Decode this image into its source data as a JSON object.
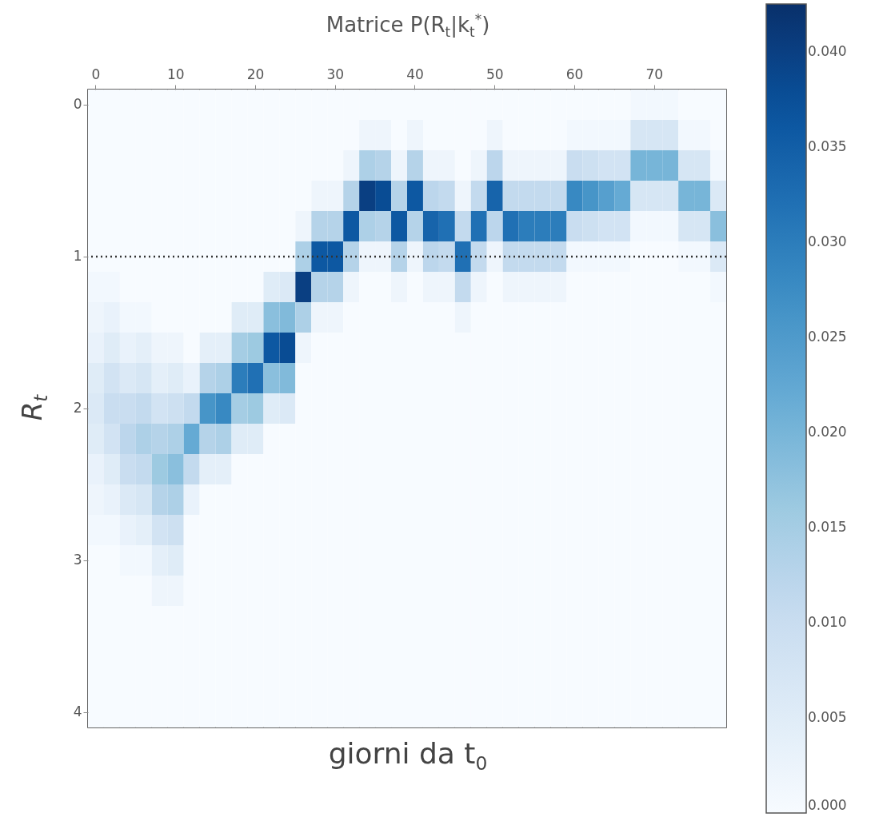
{
  "chart_data": {
    "type": "heatmap",
    "title": "Matrice P(R$_{t}$|k$_{t}$$^{*}$)",
    "xlabel": "giorni da t$_{0}$",
    "ylabel": "R$_{t}$",
    "categories": [
      "0",
      null,
      null,
      null,
      null,
      "10",
      null,
      null,
      null,
      null,
      "20",
      null,
      null,
      null,
      null,
      "30",
      null,
      null,
      null,
      null,
      "40",
      null,
      null,
      null,
      null,
      "50",
      null,
      null,
      null,
      null,
      "60",
      null,
      null,
      null,
      null,
      "70",
      null,
      null,
      null,
      null
    ],
    "y_categories": [
      "0",
      null,
      null,
      null,
      null,
      "1",
      null,
      null,
      null,
      null,
      "2",
      null,
      null,
      null,
      null,
      "3",
      null,
      null,
      null,
      null,
      "4"
    ],
    "clim": [
      0,
      0.0425
    ],
    "cticks": [
      {
        "value": 0,
        "label": "0.000"
      },
      {
        "value": 0.005,
        "label": "0.005"
      },
      {
        "value": 0.01,
        "label": "0.010"
      },
      {
        "value": 0.015,
        "label": "0.015"
      },
      {
        "value": 0.02,
        "label": "0.020"
      },
      {
        "value": 0.025,
        "label": "0.025"
      },
      {
        "value": 0.03,
        "label": "0.030"
      },
      {
        "value": 0.035,
        "label": "0.035"
      },
      {
        "value": 0.04,
        "label": "0.040"
      }
    ],
    "ref_lines": [
      {
        "axis": "y",
        "value": "1",
        "line_style": "dotted",
        "color": "#333333"
      }
    ],
    "cells": [
      [
        0,
        0,
        0,
        0,
        0,
        0,
        0,
        0,
        0,
        0,
        0,
        0,
        0,
        0,
        0,
        0,
        0,
        0,
        0,
        0,
        0,
        0,
        0,
        0,
        0,
        0,
        0,
        0,
        0,
        0,
        0,
        0,
        0,
        0,
        0.001,
        0.001,
        0.001,
        0,
        0,
        0
      ],
      [
        0,
        0,
        0,
        0,
        0,
        0,
        0,
        0,
        0,
        0,
        0,
        0,
        0,
        0,
        0,
        0,
        0,
        0.002,
        0.002,
        0,
        0.002,
        0,
        0,
        0,
        0,
        0.002,
        0,
        0,
        0,
        0,
        0.001,
        0.001,
        0.001,
        0.001,
        0.007,
        0.007,
        0.007,
        0.001,
        0.001,
        0
      ],
      [
        0,
        0,
        0,
        0,
        0,
        0,
        0,
        0,
        0,
        0,
        0,
        0,
        0,
        0,
        0,
        0,
        0.002,
        0.014,
        0.013,
        0.002,
        0.013,
        0.002,
        0.002,
        0,
        0.002,
        0.012,
        0.002,
        0.002,
        0.002,
        0.002,
        0.01,
        0.009,
        0.008,
        0.008,
        0.02,
        0.02,
        0.02,
        0.007,
        0.007,
        0.001
      ],
      [
        0,
        0,
        0,
        0,
        0,
        0,
        0,
        0,
        0,
        0,
        0,
        0,
        0,
        0,
        0.002,
        0.002,
        0.013,
        0.04,
        0.038,
        0.013,
        0.036,
        0.012,
        0.011,
        0.002,
        0.011,
        0.034,
        0.011,
        0.011,
        0.011,
        0.011,
        0.028,
        0.026,
        0.024,
        0.022,
        0.007,
        0.007,
        0.007,
        0.02,
        0.02,
        0.006
      ],
      [
        0,
        0,
        0,
        0,
        0,
        0,
        0,
        0,
        0,
        0,
        0,
        0,
        0,
        0.002,
        0.013,
        0.013,
        0.036,
        0.014,
        0.013,
        0.036,
        0.013,
        0.034,
        0.032,
        0.011,
        0.032,
        0.012,
        0.032,
        0.03,
        0.03,
        0.03,
        0.01,
        0.009,
        0.008,
        0.008,
        0.001,
        0.001,
        0.001,
        0.007,
        0.007,
        0.018
      ],
      [
        0,
        0,
        0,
        0,
        0,
        0,
        0,
        0,
        0,
        0,
        0,
        0,
        0,
        0.014,
        0.036,
        0.036,
        0.013,
        0.002,
        0.002,
        0.013,
        0.002,
        0.012,
        0.011,
        0.032,
        0.011,
        0.002,
        0.011,
        0.011,
        0.011,
        0.011,
        0.001,
        0.001,
        0.001,
        0.001,
        0,
        0,
        0,
        0.001,
        0.001,
        0.006
      ],
      [
        0.001,
        0.001,
        0,
        0,
        0,
        0,
        0,
        0,
        0,
        0,
        0,
        0.005,
        0.006,
        0.04,
        0.013,
        0.013,
        0.002,
        0,
        0,
        0.002,
        0,
        0.002,
        0.002,
        0.011,
        0.002,
        0,
        0.002,
        0.002,
        0.002,
        0.002,
        0,
        0,
        0,
        0,
        0,
        0,
        0,
        0,
        0,
        0.001
      ],
      [
        0.002,
        0.003,
        0.001,
        0.001,
        0,
        0,
        0,
        0,
        0,
        0.005,
        0.005,
        0.018,
        0.019,
        0.014,
        0.002,
        0.002,
        0,
        0,
        0,
        0,
        0,
        0,
        0,
        0.002,
        0,
        0,
        0,
        0,
        0,
        0,
        0,
        0,
        0,
        0,
        0,
        0,
        0,
        0,
        0,
        0
      ],
      [
        0.003,
        0.005,
        0.003,
        0.004,
        0.002,
        0.002,
        0,
        0.004,
        0.004,
        0.015,
        0.016,
        0.036,
        0.038,
        0.002,
        0,
        0,
        0,
        0,
        0,
        0,
        0,
        0,
        0,
        0,
        0,
        0,
        0,
        0,
        0,
        0,
        0,
        0,
        0,
        0,
        0,
        0,
        0,
        0,
        0,
        0
      ],
      [
        0.005,
        0.008,
        0.006,
        0.007,
        0.004,
        0.005,
        0.003,
        0.013,
        0.014,
        0.03,
        0.032,
        0.018,
        0.019,
        0,
        0,
        0,
        0,
        0,
        0,
        0,
        0,
        0,
        0,
        0,
        0,
        0,
        0,
        0,
        0,
        0,
        0,
        0,
        0,
        0,
        0,
        0,
        0,
        0,
        0,
        0
      ],
      [
        0.006,
        0.01,
        0.01,
        0.011,
        0.008,
        0.009,
        0.011,
        0.026,
        0.028,
        0.015,
        0.016,
        0.005,
        0.006,
        0,
        0,
        0,
        0,
        0,
        0,
        0,
        0,
        0,
        0,
        0,
        0,
        0,
        0,
        0,
        0,
        0,
        0,
        0,
        0,
        0,
        0,
        0,
        0,
        0,
        0,
        0
      ],
      [
        0.005,
        0.008,
        0.012,
        0.014,
        0.013,
        0.014,
        0.022,
        0.013,
        0.014,
        0.005,
        0.005,
        0,
        0,
        0,
        0,
        0,
        0,
        0,
        0,
        0,
        0,
        0,
        0,
        0,
        0,
        0,
        0,
        0,
        0,
        0,
        0,
        0,
        0,
        0,
        0,
        0,
        0,
        0,
        0,
        0
      ],
      [
        0.003,
        0.005,
        0.01,
        0.011,
        0.016,
        0.018,
        0.011,
        0.004,
        0.004,
        0,
        0,
        0,
        0,
        0,
        0,
        0,
        0,
        0,
        0,
        0,
        0,
        0,
        0,
        0,
        0,
        0,
        0,
        0,
        0,
        0,
        0,
        0,
        0,
        0,
        0,
        0,
        0,
        0,
        0,
        0
      ],
      [
        0.002,
        0.003,
        0.006,
        0.007,
        0.013,
        0.014,
        0.003,
        0,
        0,
        0,
        0,
        0,
        0,
        0,
        0,
        0,
        0,
        0,
        0,
        0,
        0,
        0,
        0,
        0,
        0,
        0,
        0,
        0,
        0,
        0,
        0,
        0,
        0,
        0,
        0,
        0,
        0,
        0,
        0,
        0
      ],
      [
        0.001,
        0.001,
        0.003,
        0.004,
        0.008,
        0.009,
        0,
        0,
        0,
        0,
        0,
        0,
        0,
        0,
        0,
        0,
        0,
        0,
        0,
        0,
        0,
        0,
        0,
        0,
        0,
        0,
        0,
        0,
        0,
        0,
        0,
        0,
        0,
        0,
        0,
        0,
        0,
        0,
        0,
        0
      ],
      [
        0,
        0,
        0.001,
        0.001,
        0.004,
        0.005,
        0,
        0,
        0,
        0,
        0,
        0,
        0,
        0,
        0,
        0,
        0,
        0,
        0,
        0,
        0,
        0,
        0,
        0,
        0,
        0,
        0,
        0,
        0,
        0,
        0,
        0,
        0,
        0,
        0,
        0,
        0,
        0,
        0,
        0
      ],
      [
        0,
        0,
        0,
        0,
        0.002,
        0.002,
        0,
        0,
        0,
        0,
        0,
        0,
        0,
        0,
        0,
        0,
        0,
        0,
        0,
        0,
        0,
        0,
        0,
        0,
        0,
        0,
        0,
        0,
        0,
        0,
        0,
        0,
        0,
        0,
        0,
        0,
        0,
        0,
        0,
        0
      ],
      [
        0,
        0,
        0,
        0,
        0,
        0,
        0,
        0,
        0,
        0,
        0,
        0,
        0,
        0,
        0,
        0,
        0,
        0,
        0,
        0,
        0,
        0,
        0,
        0,
        0,
        0,
        0,
        0,
        0,
        0,
        0,
        0,
        0,
        0,
        0,
        0,
        0,
        0,
        0,
        0
      ],
      [
        0,
        0,
        0,
        0,
        0,
        0,
        0,
        0,
        0,
        0,
        0,
        0,
        0,
        0,
        0,
        0,
        0,
        0,
        0,
        0,
        0,
        0,
        0,
        0,
        0,
        0,
        0,
        0,
        0,
        0,
        0,
        0,
        0,
        0,
        0,
        0,
        0,
        0,
        0,
        0
      ],
      [
        0,
        0,
        0,
        0,
        0,
        0,
        0,
        0,
        0,
        0,
        0,
        0,
        0,
        0,
        0,
        0,
        0,
        0,
        0,
        0,
        0,
        0,
        0,
        0,
        0,
        0,
        0,
        0,
        0,
        0,
        0,
        0,
        0,
        0,
        0,
        0,
        0,
        0,
        0,
        0
      ],
      [
        0,
        0,
        0,
        0,
        0,
        0,
        0,
        0,
        0,
        0,
        0,
        0,
        0,
        0,
        0,
        0,
        0,
        0,
        0,
        0,
        0,
        0,
        0,
        0,
        0,
        0,
        0,
        0,
        0,
        0,
        0,
        0,
        0,
        0,
        0,
        0,
        0,
        0,
        0,
        0
      ]
    ]
  }
}
